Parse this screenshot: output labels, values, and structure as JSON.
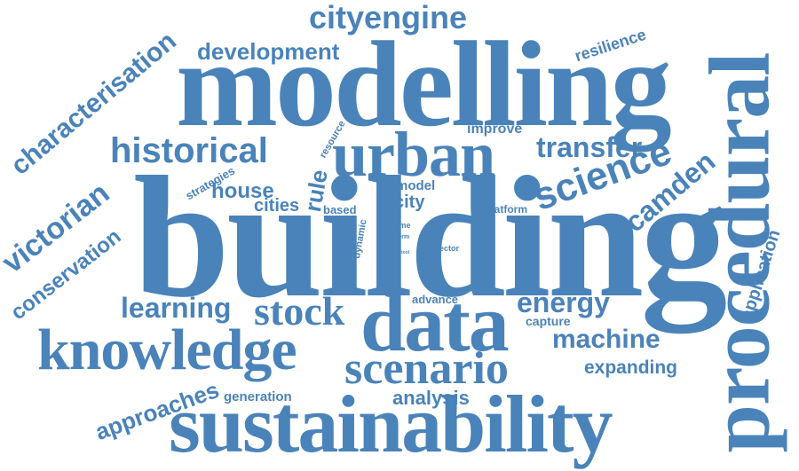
{
  "color": "#4a83b9",
  "words": {
    "building": "building",
    "modelling": "modelling",
    "sustainability": "sustainability",
    "procedural": "procedural",
    "data": "data",
    "urban": "urban",
    "knowledge": "knowledge",
    "scenario": "scenario",
    "historical": "historical",
    "cityengine": "cityengine",
    "science": "science",
    "stock": "stock",
    "characterisation": "characterisation",
    "victorian": "victorian",
    "camden": "camden",
    "transfer": "transfer",
    "learning": "learning",
    "energy": "energy",
    "machine": "machine",
    "development": "development",
    "approaches": "approaches",
    "conservation": "conservation",
    "house": "house",
    "rule": "rule",
    "cities": "cities",
    "expanding": "expanding",
    "analysis": "analysis",
    "resilience": "resilience",
    "application": "application",
    "improve": "improve",
    "city": "city",
    "model": "model",
    "generation": "generation",
    "capture": "capture",
    "advance": "advance",
    "strategies": "strategies",
    "based": "based",
    "platform": "platform",
    "resource": "resource",
    "dynamic": "dynamic",
    "specific": "specific",
    "time": "time",
    "term": "term",
    "tool": "tool",
    "more": "more",
    "sector": "sector"
  }
}
